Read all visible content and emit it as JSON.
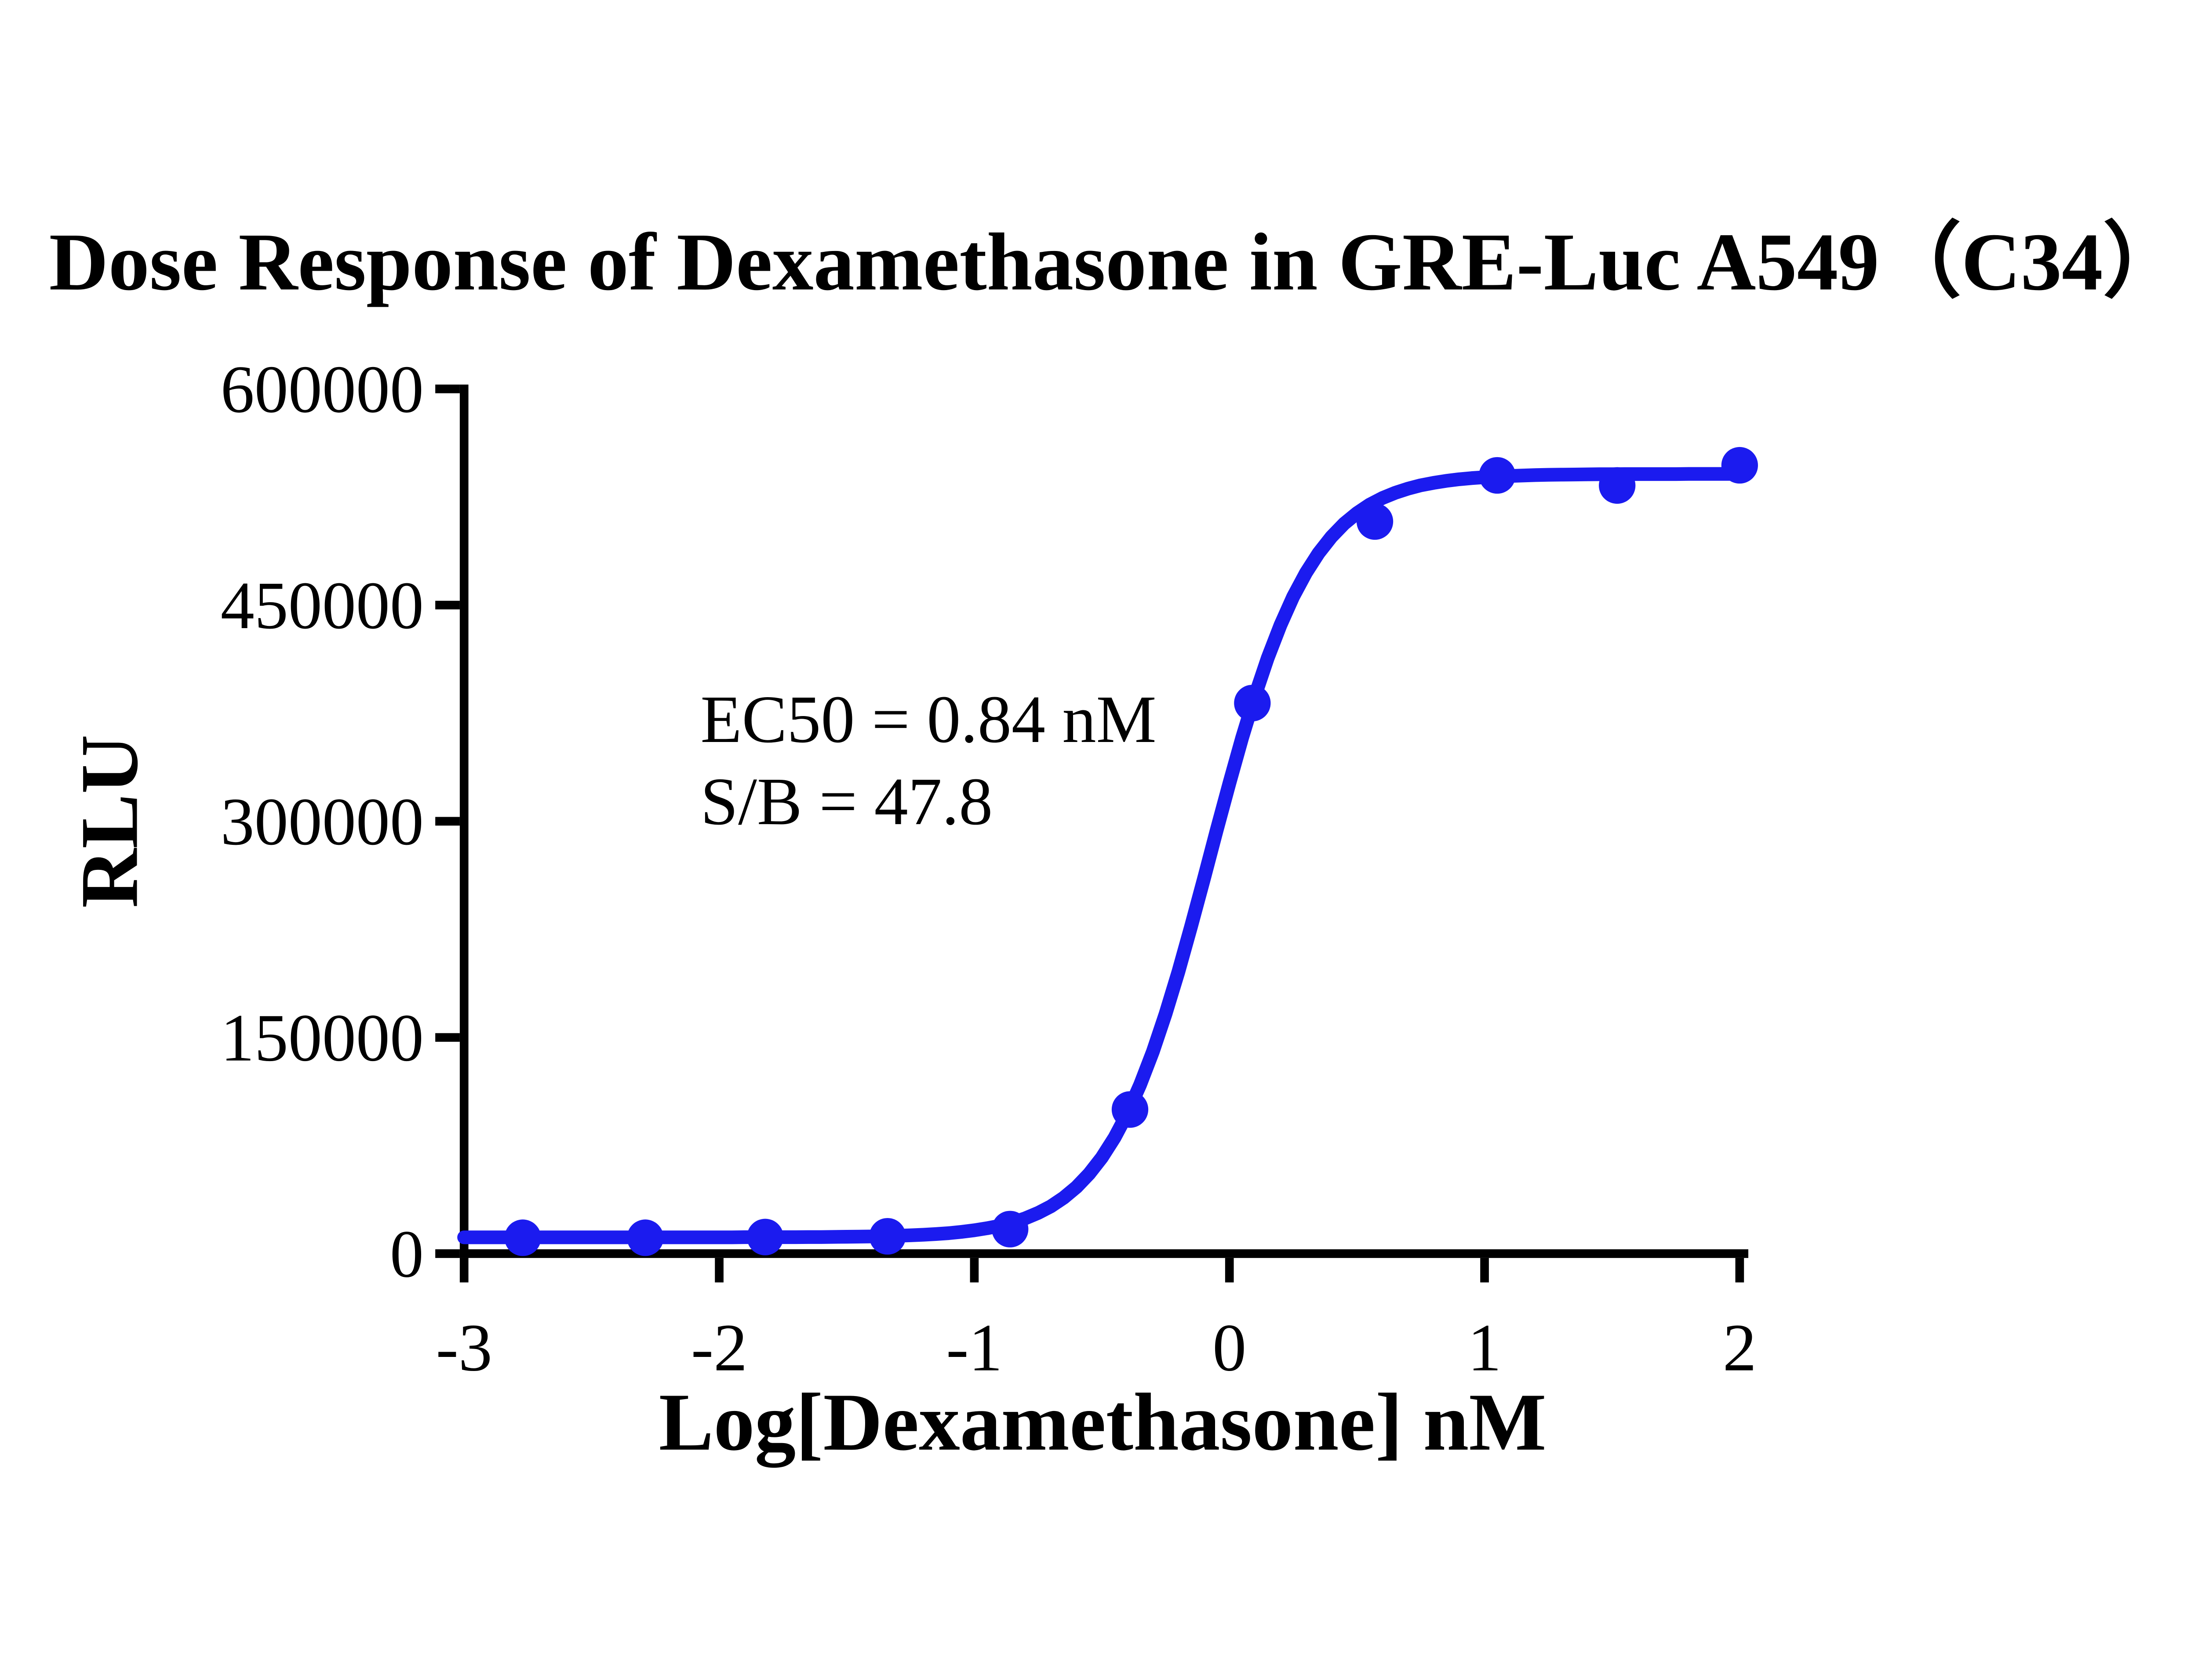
{
  "page": {
    "background": "#ffffff"
  },
  "chart_data": {
    "type": "scatter",
    "subtype": "dose-response-curve-with-sigmoid-fit",
    "title": "Dose Response of Dexamethasone in GRE-Luc A549（C34）",
    "xlabel": "Log[Dexamethasone] nM",
    "ylabel": "RLU",
    "x": [
      -2.77,
      -2.29,
      -1.82,
      -1.34,
      -0.86,
      -0.39,
      0.09,
      0.57,
      1.05,
      1.52,
      2.0
    ],
    "y": [
      11000,
      11000,
      11500,
      12000,
      17000,
      100000,
      382000,
      508000,
      540000,
      533000,
      547000
    ],
    "x_ticks": {
      "values": [
        -3,
        -2,
        -1,
        0,
        1,
        2
      ],
      "labels": [
        "-3",
        "-2",
        "-1",
        "0",
        "1",
        "2"
      ]
    },
    "y_ticks": {
      "values": [
        0,
        150000,
        300000,
        450000,
        600000
      ],
      "labels": [
        "0",
        "150000",
        "300000",
        "450000",
        "600000"
      ]
    },
    "xlim": [
      -3,
      2
    ],
    "ylim": [
      0,
      600000
    ],
    "grid": false,
    "legend": false,
    "fit_curve": {
      "model": "4PL",
      "bottom": 11300,
      "top": 541000,
      "log_ec50": -0.076,
      "hill": 2.2
    },
    "annotation": [
      "EC50 = 0.84 nM",
      "S/B = 47.8"
    ],
    "series_color": "#1b1bef",
    "axis_color": "#000000",
    "text_color": "#000000"
  }
}
